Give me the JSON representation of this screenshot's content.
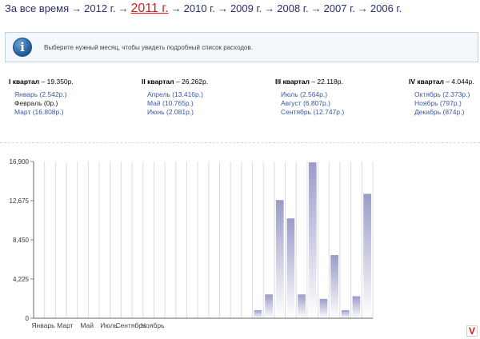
{
  "year_nav": {
    "items": [
      {
        "label": "За все время",
        "current": false
      },
      {
        "label": "2012 г.",
        "current": false
      },
      {
        "label": "2011 г.",
        "current": true
      },
      {
        "label": "2010 г.",
        "current": false
      },
      {
        "label": "2009 г.",
        "current": false
      },
      {
        "label": "2008 г.",
        "current": false
      },
      {
        "label": "2007 г.",
        "current": false
      },
      {
        "label": "2006 г.",
        "current": false
      }
    ],
    "separator": "→"
  },
  "info": {
    "icon": "info-icon",
    "glyph": "i",
    "text": "Выберите нужный месяц, чтобы увидеть подробный список расходов."
  },
  "quarters": [
    {
      "title": "I квартал",
      "total": " – 19.350р.",
      "months": [
        "Январь (2.542р.)",
        "Февраль (0р.)",
        "Март (16.808р.)"
      ]
    },
    {
      "title": "II квартал",
      "total": " – 26.262р.",
      "months": [
        "Апрель (13.416р.)",
        "Май (10.765р.)",
        "Июнь (2.081р.)"
      ]
    },
    {
      "title": "III квартал",
      "total": " – 22.118р.",
      "months": [
        "Июль (2.564р.)",
        "Август (6.807р.)",
        "Сентябрь (12.747р.)"
      ]
    },
    {
      "title": "IV квартал",
      "total": " – 4.044р.",
      "months": [
        "Октябрь (2.373р.)",
        "Ноябрь (797р.)",
        "Декабрь (874р.)"
      ]
    }
  ],
  "chart_data": {
    "type": "bar",
    "ylim": [
      0,
      16900
    ],
    "y_ticks": [
      0,
      4225,
      8450,
      12675,
      16900
    ],
    "y_tick_labels": [
      "0",
      "4,225",
      "8,450",
      "12,675",
      "16,900"
    ],
    "x_tick_labels": [
      "Январь",
      "Март",
      "Май",
      "Июль",
      "Сентябрь",
      "Ноябрь"
    ],
    "values": [
      0,
      0,
      0,
      0,
      0,
      0,
      0,
      0,
      0,
      0,
      0,
      0,
      0,
      0,
      0,
      0,
      0,
      0,
      0,
      0,
      874,
      2564,
      12747,
      10765,
      2564,
      16808,
      2081,
      6807,
      874,
      2373,
      13416
    ],
    "bar_color": "#9a9cc8",
    "grid": true
  },
  "logo": {
    "text": "V",
    "color": "#d31818"
  }
}
